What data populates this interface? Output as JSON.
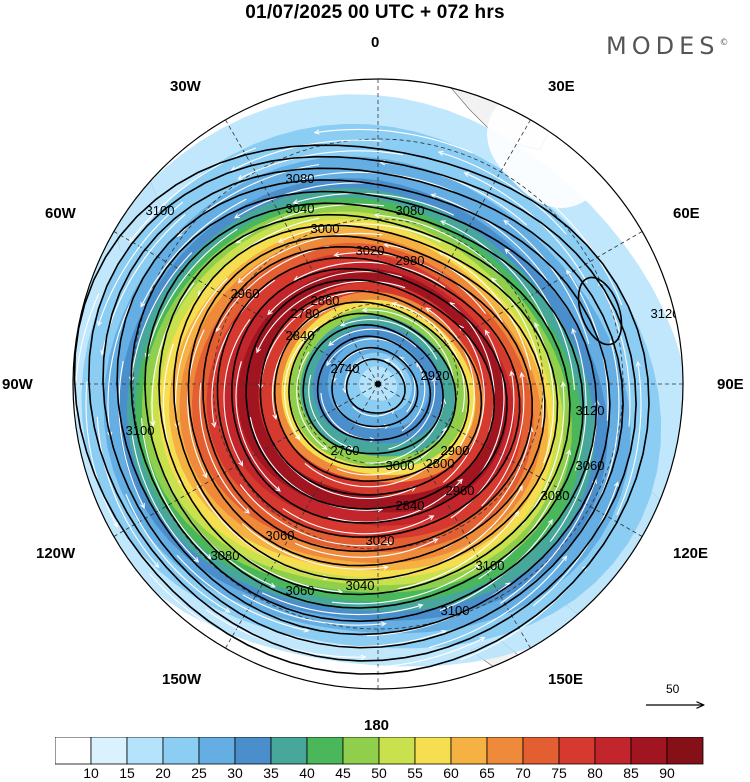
{
  "header": {
    "title": "01/07/2025  00 UTC  + 072 hrs",
    "brand": "MODES",
    "brand_mark": "©"
  },
  "map": {
    "projection": "polar-stereographic-south",
    "longitude_labels": {
      "top": "0",
      "top_right": "30E",
      "right_upper": "60E",
      "right": "90E",
      "right_lower": "120E",
      "bottom_right": "150E",
      "bottom": "180",
      "bottom_left": "150W",
      "left_lower": "120W",
      "left": "90W",
      "left_upper": "60W",
      "top_left": "30W"
    },
    "contour_labels": [
      "3120",
      "3080",
      "3100",
      "3040",
      "3080",
      "3000",
      "3020",
      "2960",
      "2980",
      "2860",
      "2780",
      "2740",
      "2920",
      "2900",
      "2840",
      "2760",
      "3000",
      "2960",
      "2840",
      "2800",
      "3060",
      "3100",
      "3080",
      "3060",
      "3040",
      "3020",
      "3100",
      "3060",
      "3080",
      "3120",
      "3120",
      "3100"
    ],
    "reference_vector_label": "50",
    "colors": {
      "land": "#f2f2f2",
      "contour": "#000000",
      "streamline": "#ffffff"
    }
  },
  "colorbar": {
    "labels": [
      "10",
      "15",
      "20",
      "25",
      "30",
      "35",
      "40",
      "45",
      "50",
      "55",
      "60",
      "65",
      "70",
      "75",
      "80",
      "85",
      "90"
    ],
    "colors": [
      "#ffffff",
      "#d9f2fd",
      "#b5e3fb",
      "#8ccdf3",
      "#64aee3",
      "#4a8fcc",
      "#46a79a",
      "#49b75a",
      "#8fcf4b",
      "#c9e14d",
      "#f5de4f",
      "#f5b243",
      "#ef8a3a",
      "#e35f32",
      "#d63a2f",
      "#c2252b",
      "#a0151f",
      "#861018"
    ]
  }
}
